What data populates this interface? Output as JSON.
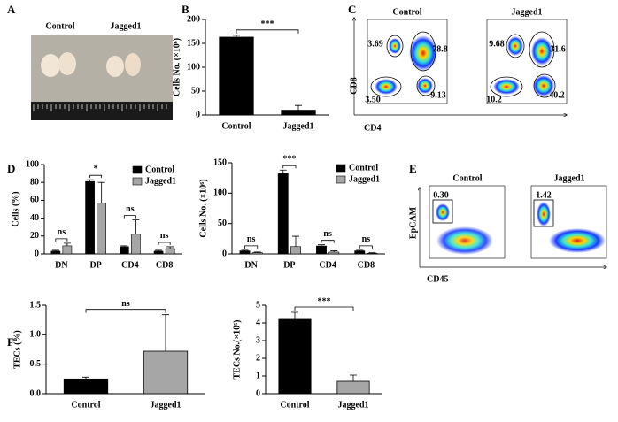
{
  "figure": {
    "panel_labels": [
      "A",
      "B",
      "C",
      "D",
      "E",
      "F"
    ],
    "photo_labels": [
      "Control",
      "Jagged1"
    ],
    "flow_c": {
      "titles": [
        "Control",
        "Jagged1"
      ],
      "x_label": "CD4",
      "y_label": "CD8",
      "control_gates": [
        "3.69",
        "78.8",
        "3.50",
        "9.13"
      ],
      "jagged1_gates": [
        "9.68",
        "31.6",
        "10.2",
        "40.2"
      ]
    },
    "flow_e": {
      "titles": [
        "Control",
        "Jagged1"
      ],
      "x_label": "CD45",
      "y_label": "EpCAM",
      "gates": [
        "0.30",
        "1.42"
      ]
    }
  },
  "chart_data": [
    {
      "type": "bar",
      "y_label": "Cells No. (×10⁶)",
      "categories": [
        "Control",
        "Jagged1"
      ],
      "values": [
        163,
        10
      ],
      "errors": [
        4,
        10
      ],
      "colors": [
        "#000000",
        "#000000"
      ],
      "ylim": [
        0,
        200
      ],
      "yticks": [
        0,
        50,
        100,
        150,
        200
      ],
      "significance": "***"
    },
    {
      "type": "grouped-bar",
      "y_label": "Cells (%)",
      "categories": [
        "DN",
        "DP",
        "CD4",
        "CD8"
      ],
      "series": [
        {
          "name": "Control",
          "color": "#000000",
          "values": [
            3,
            81,
            8,
            3
          ],
          "errors": [
            1,
            2,
            1,
            1
          ]
        },
        {
          "name": "Jagged1",
          "color": "#a6a6a6",
          "values": [
            9,
            57,
            22,
            6
          ],
          "errors": [
            3,
            23,
            16,
            2
          ]
        }
      ],
      "ylim": [
        0,
        100
      ],
      "yticks": [
        0,
        20,
        40,
        60,
        80,
        100
      ],
      "significance": [
        "ns",
        "*",
        "ns",
        "ns"
      ]
    },
    {
      "type": "grouped-bar",
      "y_label": "Cells No. (×10⁶)",
      "categories": [
        "DN",
        "DP",
        "CD4",
        "CD8"
      ],
      "series": [
        {
          "name": "Control",
          "color": "#000000",
          "values": [
            5,
            132,
            13,
            5
          ],
          "errors": [
            1,
            6,
            2,
            1
          ]
        },
        {
          "name": "Jagged1",
          "color": "#a6a6a6",
          "values": [
            2,
            12,
            3,
            1
          ],
          "errors": [
            1,
            17,
            2,
            1
          ]
        }
      ],
      "ylim": [
        0,
        150
      ],
      "yticks": [
        0,
        50,
        100,
        150
      ],
      "significance": [
        "ns",
        "***",
        "ns",
        "ns"
      ]
    },
    {
      "type": "bar",
      "y_label": "TECs (%)",
      "categories": [
        "Control",
        "Jagged1"
      ],
      "values": [
        0.25,
        0.72
      ],
      "errors": [
        0.03,
        0.62
      ],
      "colors": [
        "#000000",
        "#a6a6a6"
      ],
      "ylim": [
        0,
        1.5
      ],
      "yticks": [
        {
          "value": 0,
          "label": "0.0"
        },
        0.5,
        {
          "value": 1,
          "label": "1.0"
        },
        1.5
      ],
      "significance": "ns"
    },
    {
      "type": "bar",
      "y_label": "TECs No.(×10⁵)",
      "categories": [
        "Control",
        "Jagged1"
      ],
      "values": [
        4.2,
        0.7
      ],
      "errors": [
        0.4,
        0.35
      ],
      "colors": [
        "#000000",
        "#a6a6a6"
      ],
      "ylim": [
        0,
        5
      ],
      "yticks": [
        0,
        1,
        2,
        3,
        4,
        5
      ],
      "significance": "***"
    }
  ]
}
